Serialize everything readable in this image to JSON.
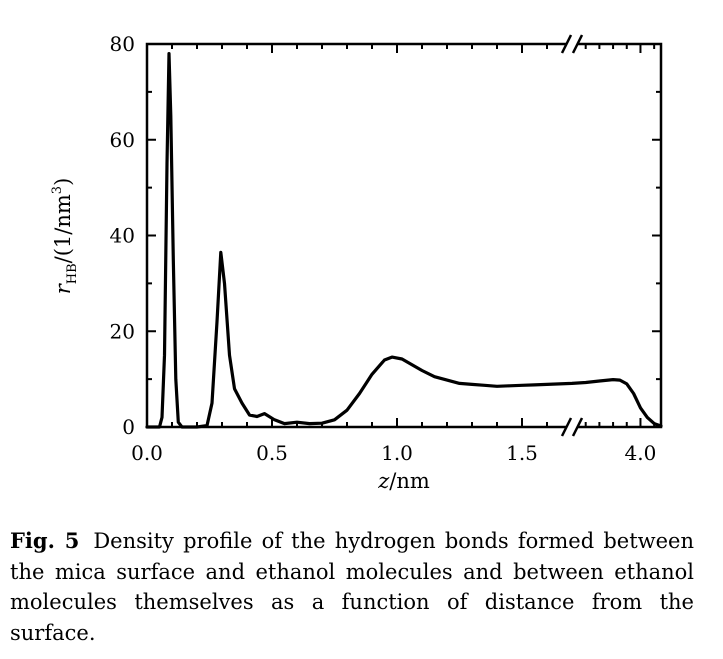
{
  "chart_data": {
    "type": "line",
    "xlabel_var": "z",
    "xlabel_unit": "/nm",
    "ylabel_var": "r",
    "ylabel_sub": "HB",
    "ylabel_rest": "/(1/nm",
    "ylabel_sup": "3",
    "ylabel_close": ")",
    "ylim": [
      0,
      80
    ],
    "x_segments": [
      [
        0.0,
        1.7
      ],
      [
        3.5,
        4.15
      ]
    ],
    "x_break": "between 1.7 and 3.5 (//)",
    "x_ticks": [
      {
        "value": 0.0,
        "label": "0.0"
      },
      {
        "value": 0.5,
        "label": "0.5"
      },
      {
        "value": 1.0,
        "label": "1.0"
      },
      {
        "value": 1.5,
        "label": "1.5"
      },
      {
        "value": 4.0,
        "label": "4.0"
      }
    ],
    "y_ticks": [
      {
        "value": 0,
        "label": "0"
      },
      {
        "value": 20,
        "label": "20"
      },
      {
        "value": 40,
        "label": "40"
      },
      {
        "value": 60,
        "label": "60"
      },
      {
        "value": 80,
        "label": "80"
      }
    ],
    "series": [
      {
        "color": "#000000",
        "points": [
          [
            0.0,
            0
          ],
          [
            0.05,
            0
          ],
          [
            0.06,
            2
          ],
          [
            0.07,
            15
          ],
          [
            0.08,
            55
          ],
          [
            0.088,
            78
          ],
          [
            0.095,
            65
          ],
          [
            0.105,
            35
          ],
          [
            0.115,
            10
          ],
          [
            0.125,
            1
          ],
          [
            0.14,
            0
          ],
          [
            0.2,
            0
          ],
          [
            0.24,
            0.3
          ],
          [
            0.26,
            5
          ],
          [
            0.28,
            22
          ],
          [
            0.295,
            36.5
          ],
          [
            0.31,
            30
          ],
          [
            0.33,
            15
          ],
          [
            0.35,
            8
          ],
          [
            0.38,
            5
          ],
          [
            0.41,
            2.5
          ],
          [
            0.44,
            2.2
          ],
          [
            0.47,
            2.8
          ],
          [
            0.51,
            1.5
          ],
          [
            0.55,
            0.7
          ],
          [
            0.6,
            1.0
          ],
          [
            0.65,
            0.7
          ],
          [
            0.7,
            0.8
          ],
          [
            0.75,
            1.5
          ],
          [
            0.8,
            3.5
          ],
          [
            0.85,
            7
          ],
          [
            0.9,
            11
          ],
          [
            0.95,
            14
          ],
          [
            0.98,
            14.6
          ],
          [
            1.02,
            14.2
          ],
          [
            1.06,
            13
          ],
          [
            1.1,
            11.8
          ],
          [
            1.15,
            10.5
          ],
          [
            1.2,
            9.8
          ],
          [
            1.25,
            9.1
          ],
          [
            1.3,
            8.9
          ],
          [
            1.35,
            8.7
          ],
          [
            1.4,
            8.5
          ],
          [
            1.45,
            8.6
          ],
          [
            1.5,
            8.7
          ],
          [
            1.55,
            8.8
          ],
          [
            1.6,
            8.9
          ],
          [
            1.65,
            9.0
          ],
          [
            1.7,
            9.1
          ],
          [
            3.5,
            9.1
          ],
          [
            3.6,
            9.3
          ],
          [
            3.7,
            9.6
          ],
          [
            3.8,
            9.9
          ],
          [
            3.85,
            9.8
          ],
          [
            3.9,
            9.0
          ],
          [
            3.95,
            7.0
          ],
          [
            4.0,
            4.0
          ],
          [
            4.05,
            2.0
          ],
          [
            4.1,
            0.7
          ],
          [
            4.15,
            0.2
          ]
        ]
      }
    ]
  },
  "caption": {
    "label": "Fig. 5",
    "text": "Density profile of the hydrogen bonds formed between the mica surface and ethanol molecules and between ethanol molecules themselves as a function of distance from the surface."
  }
}
